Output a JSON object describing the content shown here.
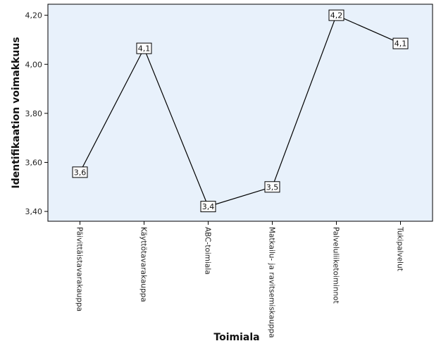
{
  "chart_data": {
    "type": "line",
    "title": "",
    "xlabel": "Toimiala",
    "ylabel": "Identifikaation voimakkuus",
    "categories": [
      "Päivittäistavarakauppa",
      "Käyttötavarakauppa",
      "ABC-toimiala",
      "Matkailu- ja ravitsemiskauppa",
      "Palveluliiketoiminnot",
      "Tukipalvelut"
    ],
    "values": [
      3.56,
      4.065,
      3.42,
      3.5,
      4.2,
      4.085
    ],
    "point_labels": [
      "3,6",
      "4,1",
      "3,4",
      "3,5",
      "4,2",
      "4,1"
    ],
    "yticks": [
      3.4,
      3.6,
      3.8,
      4.0,
      4.2
    ],
    "ytick_labels": [
      "3,40",
      "3,60",
      "3,80",
      "4,00",
      "4,20"
    ],
    "ylim": [
      3.36,
      4.245
    ],
    "grid": false,
    "colors": {
      "plot_bg": "#e8f1fb",
      "line": "#000000",
      "axis": "#000000",
      "label_box": "#ffffff"
    }
  }
}
